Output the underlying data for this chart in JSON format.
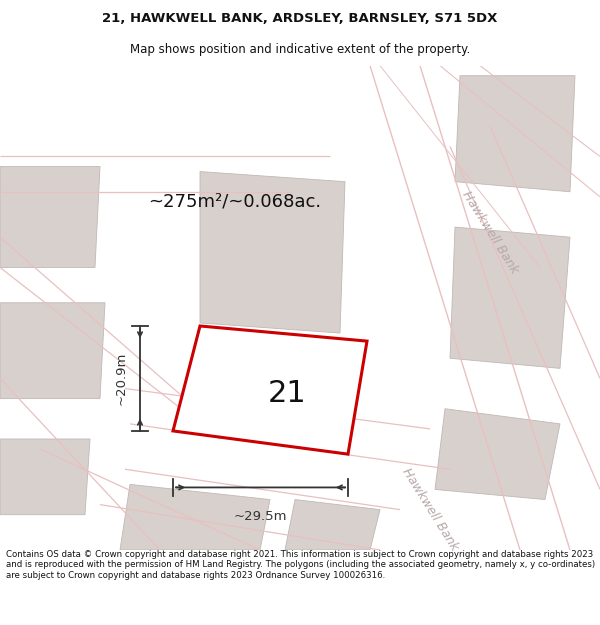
{
  "title_line1": "21, HAWKWELL BANK, ARDSLEY, BARNSLEY, S71 5DX",
  "title_line2": "Map shows position and indicative extent of the property.",
  "area_text": "~275m²/~0.068ac.",
  "plot_number": "21",
  "dim_width": "~29.5m",
  "dim_height": "~20.9m",
  "street_label_upper": "Hawkwell Bank",
  "street_label_lower": "Hawkwell Bank",
  "footer_text": "Contains OS data © Crown copyright and database right 2021. This information is subject to Crown copyright and database rights 2023 and is reproduced with the permission of HM Land Registry. The polygons (including the associated geometry, namely x, y co-ordinates) are subject to Crown copyright and database rights 2023 Ordnance Survey 100026316.",
  "map_bg": "#f7f3f2",
  "road_fill": "#f0e8e8",
  "road_line": "#e8c0c0",
  "building_fill": "#d8d0cc",
  "building_edge": "#c0b8b5",
  "plot_fill": "#f7f3f2",
  "plot_edge": "#cc0000",
  "dim_line_color": "#333333",
  "street_color": "#b8a8a8",
  "white": "#ffffff",
  "black": "#111111"
}
